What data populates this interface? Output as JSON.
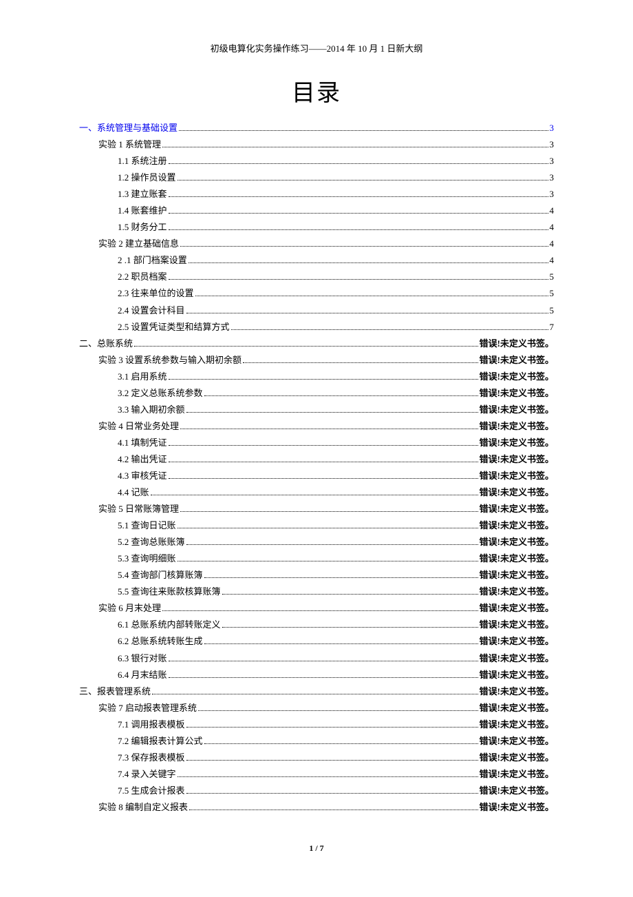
{
  "header": "初级电算化实务操作练习——2014 年 10 月 1 日新大纲",
  "title": "目录",
  "footer": "1 / 7",
  "error_text": "错误!未定义书签。",
  "toc": [
    {
      "indent": 0,
      "label": "一、系统管理与基础设置",
      "page": "3",
      "link": true
    },
    {
      "indent": 1,
      "label": "实验 1  系统管理",
      "page": "3",
      "link": false
    },
    {
      "indent": 2,
      "label": "1.1  系统注册",
      "page": "3",
      "link": false
    },
    {
      "indent": 2,
      "label": "1.2  操作员设置",
      "page": "3",
      "link": false
    },
    {
      "indent": 2,
      "label": "1.3  建立账套",
      "page": "3",
      "link": false
    },
    {
      "indent": 2,
      "label": "1.4  账套维护",
      "page": "4",
      "link": false
    },
    {
      "indent": 2,
      "label": "1.5  财务分工",
      "page": "4",
      "link": false
    },
    {
      "indent": 1,
      "label": "实验 2  建立基础信息",
      "page": "4",
      "link": false
    },
    {
      "indent": 2,
      "label": "2 .1  部门档案设置",
      "page": "4",
      "link": false
    },
    {
      "indent": 2,
      "label": "2.2 职员档案",
      "page": "5",
      "link": false
    },
    {
      "indent": 2,
      "label": "2.3 往来单位的设置",
      "page": "5",
      "link": false
    },
    {
      "indent": 2,
      "label": "2.4 设置会计科目",
      "page": "5",
      "link": false
    },
    {
      "indent": 2,
      "label": "2.5 设置凭证类型和结算方式",
      "page": "7",
      "link": false
    },
    {
      "indent": 0,
      "label": "二、总账系统",
      "page": "ERR",
      "link": false
    },
    {
      "indent": 1,
      "label": "实验 3  设置系统参数与输入期初余额",
      "page": "ERR",
      "link": false
    },
    {
      "indent": 2,
      "label": "3.1  启用系统",
      "page": "ERR",
      "link": false
    },
    {
      "indent": 2,
      "label": "3.2  定义总账系统参数",
      "page": "ERR",
      "link": false
    },
    {
      "indent": 2,
      "label": "3.3  输入期初余额",
      "page": "ERR",
      "link": false
    },
    {
      "indent": 1,
      "label": "实验 4  日常业务处理",
      "page": "ERR",
      "link": false
    },
    {
      "indent": 2,
      "label": "4.1  填制凭证",
      "page": "ERR",
      "link": false
    },
    {
      "indent": 2,
      "label": "4.2  输出凭证",
      "page": "ERR",
      "link": false
    },
    {
      "indent": 2,
      "label": "4.3  审核凭证",
      "page": "ERR",
      "link": false
    },
    {
      "indent": 2,
      "label": "4.4  记账",
      "page": "ERR",
      "link": false
    },
    {
      "indent": 1,
      "label": "实验 5  日常账簿管理",
      "page": "ERR",
      "link": false
    },
    {
      "indent": 2,
      "label": "5.1  查询日记账",
      "page": "ERR",
      "link": false
    },
    {
      "indent": 2,
      "label": "5.2  查询总账账簿",
      "page": "ERR",
      "link": false
    },
    {
      "indent": 2,
      "label": "5.3  查询明细账",
      "page": "ERR",
      "link": false
    },
    {
      "indent": 2,
      "label": "5.4  查询部门核算账簿",
      "page": "ERR",
      "link": false
    },
    {
      "indent": 2,
      "label": "5.5  查询往来账款核算账簿",
      "page": "ERR",
      "link": false
    },
    {
      "indent": 1,
      "label": "实验 6  月末处理",
      "page": "ERR",
      "link": false
    },
    {
      "indent": 2,
      "label": "6.1  总账系统内部转账定义",
      "page": "ERR",
      "link": false
    },
    {
      "indent": 2,
      "label": "6.2  总账系统转账生成",
      "page": "ERR",
      "link": false
    },
    {
      "indent": 2,
      "label": "6.3  银行对账",
      "page": "ERR",
      "link": false
    },
    {
      "indent": 2,
      "label": "6.4  月末结账",
      "page": "ERR",
      "link": false
    },
    {
      "indent": 0,
      "label": "三、报表管理系统",
      "page": "ERR",
      "link": false
    },
    {
      "indent": 1,
      "label": "实验 7  启动报表管理系统",
      "page": "ERR",
      "link": false
    },
    {
      "indent": 2,
      "label": "7.1  调用报表模板",
      "page": "ERR",
      "link": false
    },
    {
      "indent": 2,
      "label": "7.2  编辑报表计算公式",
      "page": "ERR",
      "link": false
    },
    {
      "indent": 2,
      "label": "7.3  保存报表模板",
      "page": "ERR",
      "link": false
    },
    {
      "indent": 2,
      "label": "7.4  录入关键字",
      "page": "ERR",
      "link": false
    },
    {
      "indent": 2,
      "label": "7.5  生成会计报表",
      "page": "ERR",
      "link": false
    },
    {
      "indent": 1,
      "label": "实验 8  编制自定义报表",
      "page": "ERR",
      "link": false
    }
  ]
}
